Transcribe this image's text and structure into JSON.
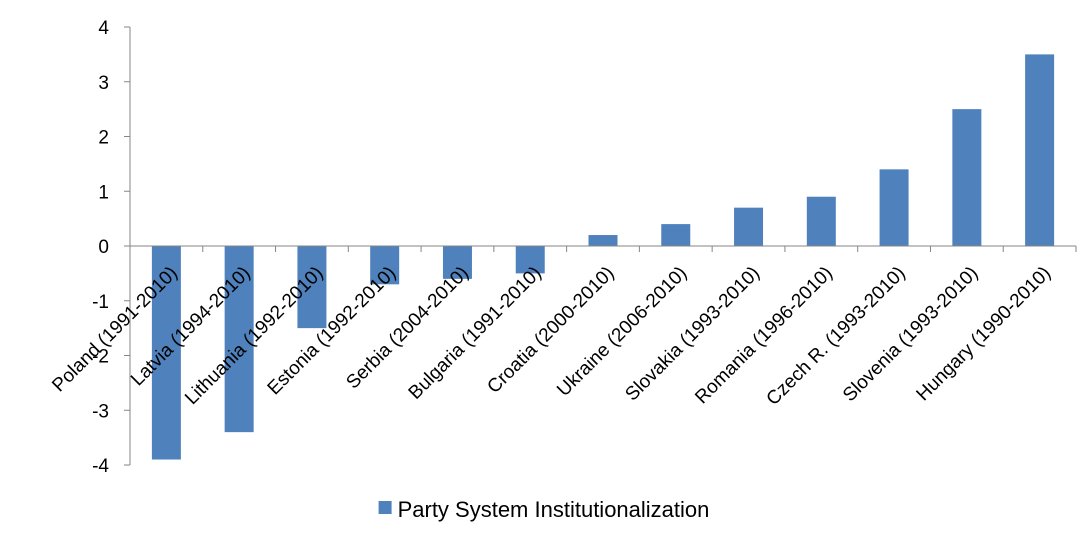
{
  "chart_data": {
    "type": "bar",
    "categories": [
      "Poland (1991-2010)",
      "Latvia (1994-2010)",
      "Lithuania (1992-2010)",
      "Estonia (1992-2010)",
      "Serbia (2004-2010)",
      "Bulgaria (1991-2010)",
      "Croatia (2000-2010)",
      "Ukraine (2006-2010)",
      "Slovakia (1993-2010)",
      "Romania (1996-2010)",
      "Czech R. (1993-2010)",
      "Slovenia (1993-2010)",
      "Hungary (1990-2010)"
    ],
    "series": [
      {
        "name": "Party System Institutionalization",
        "color": "#4F81BD",
        "values": [
          -3.9,
          -3.4,
          -1.5,
          -0.7,
          -0.6,
          -0.5,
          0.2,
          0.4,
          0.7,
          0.9,
          1.4,
          2.5,
          3.5
        ]
      }
    ],
    "title": "",
    "xlabel": "",
    "ylabel": "",
    "ylim": [
      -4,
      4
    ],
    "yticks": [
      "4",
      "3",
      "2",
      "1",
      "0",
      "-1",
      "-2",
      "-3",
      "-4"
    ],
    "grid": false,
    "legend_position": "bottom"
  }
}
